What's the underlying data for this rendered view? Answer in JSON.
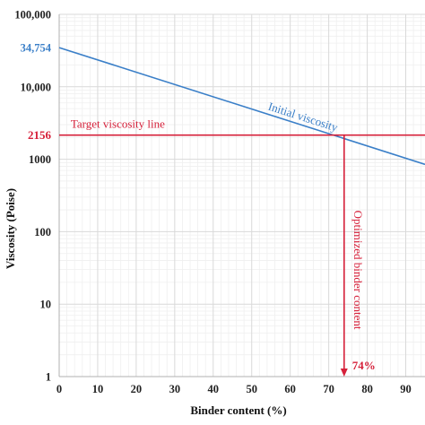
{
  "chart_data": {
    "type": "line",
    "title": "",
    "xlabel": "Binder content (%)",
    "ylabel": "Viscosity (Poise)",
    "x_scale": "linear",
    "y_scale": "log",
    "xlim": [
      0,
      95
    ],
    "ylim": [
      1,
      100000
    ],
    "x_ticks": [
      0,
      10,
      20,
      30,
      40,
      50,
      60,
      70,
      80,
      90
    ],
    "x_tick_labels": [
      "0",
      "10",
      "20",
      "30",
      "40",
      "50",
      "60",
      "70",
      "80",
      "90"
    ],
    "y_ticks": [
      1,
      10,
      100,
      1000,
      10000,
      100000
    ],
    "y_tick_labels": [
      "1",
      "10",
      "100",
      "1000",
      "10,000",
      "100,000"
    ],
    "grid": true,
    "series": [
      {
        "name": "Initial viscosity",
        "color": "#3a7fc8",
        "x": [
          0,
          95
        ],
        "y": [
          34754,
          850
        ]
      }
    ],
    "reference_lines": {
      "target": {
        "label": "Target viscosity line",
        "value": 2156,
        "value_label": "2156",
        "color": "#d6203a"
      },
      "optimized": {
        "label": "Optimized binder content",
        "value": 74,
        "value_label": "74%",
        "color": "#d6203a"
      }
    },
    "intercept_label": "34,754",
    "intercept_color": "#3a7fc8"
  }
}
